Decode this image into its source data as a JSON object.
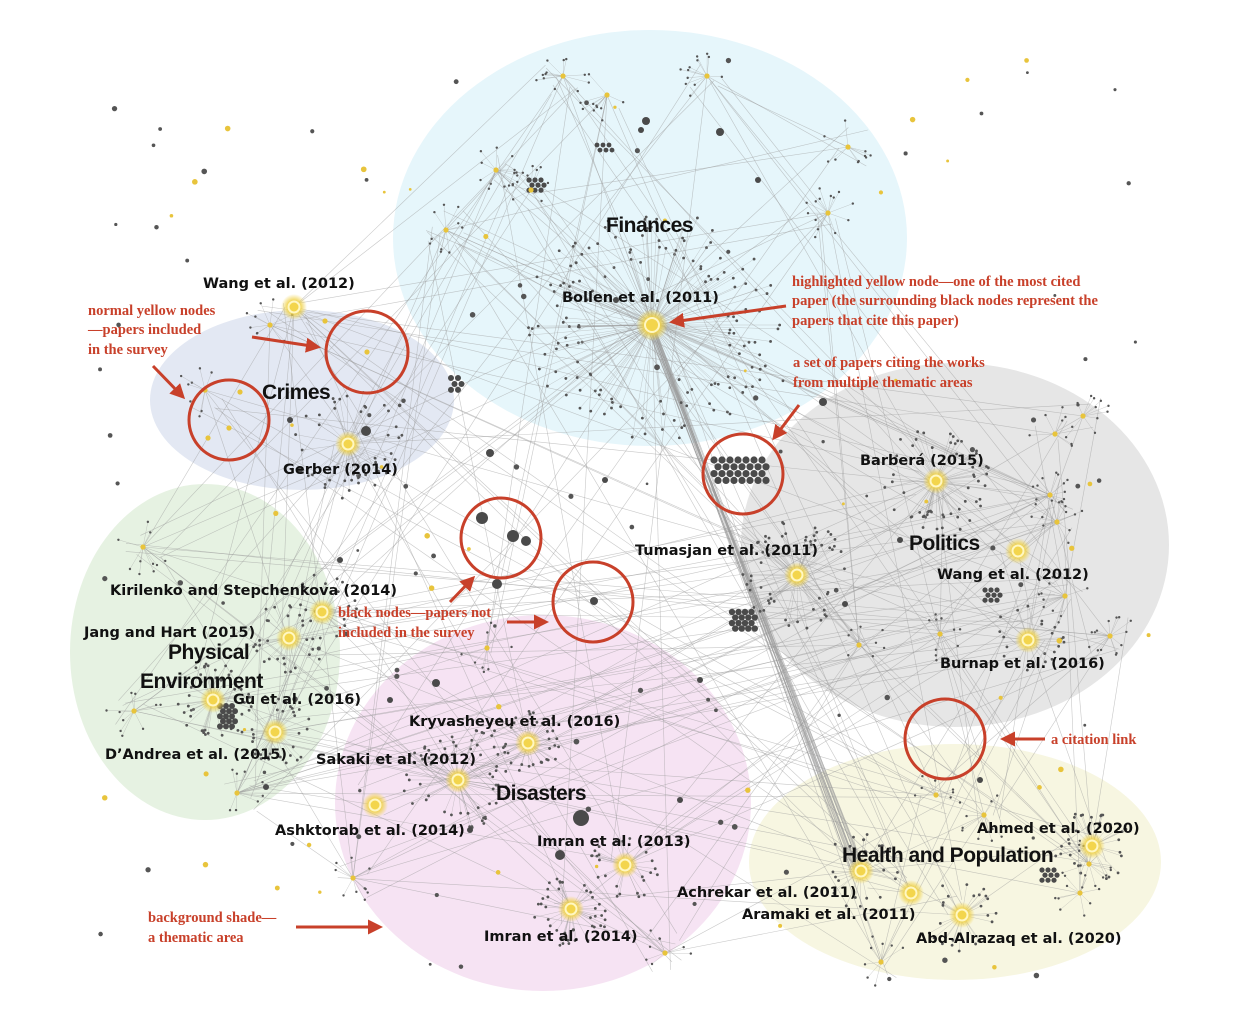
{
  "areas": {
    "finances": "Finances",
    "crimes": "Crimes",
    "politics": "Politics",
    "physical": [
      "Physical",
      "Environment"
    ],
    "disasters": "Disasters",
    "health": "Health and Population"
  },
  "papers": {
    "bollen": "Bollen et al. (2011)",
    "wang_crimes": "Wang et al. (2012)",
    "gerber": "Gerber (2014)",
    "barbera": "Barberá (2015)",
    "tumasjan": "Tumasjan et al. (2011)",
    "wang_politics": "Wang et al. (2012)",
    "burnap": "Burnap et al. (2016)",
    "kirilenko": "Kirilenko and Stepchenkova (2014)",
    "jang": "Jang and Hart (2015)",
    "gu": "Gu et al. (2016)",
    "dandrea": "D’Andrea et al. (2015)",
    "kryvasheyeu": "Kryvasheyeu et al. (2016)",
    "sakaki": "Sakaki et al. (2012)",
    "ashktorab": "Ashktorab et al. (2014)",
    "imran2013": "Imran et al. (2013)",
    "imran2014": "Imran et al. (2014)",
    "ahmed": "Ahmed et al. (2020)",
    "achrekar": "Achrekar et al. (2011)",
    "aramaki": "Aramaki et al. (2011)",
    "abd": "Abd-Alrazaq et al. (2020)"
  },
  "annotations": {
    "highlighted": [
      "highlighted yellow node—one of the most cited",
      "paper (the surrounding black nodes represent the",
      "papers that cite this paper)"
    ],
    "normal": [
      "normal yellow nodes",
      "—papers included",
      "in the survey"
    ],
    "multi": [
      "a set of papers citing the works",
      "from multiple thematic areas"
    ],
    "black": [
      "black nodes—papers not",
      "included in the survey"
    ],
    "link": "a citation link",
    "shade": [
      "background shade—",
      "a thematic area"
    ]
  },
  "colors": {
    "finances_shade": "#e6f6fb",
    "crimes_shade": "#e3e8f3",
    "politics_shade": "#e6e6e6",
    "physical_shade": "#e6f2e2",
    "disasters_shade": "#f6e3f3",
    "health_shade": "#f7f6e1",
    "yellow_node": "#e8c43c",
    "black_node": "#4a4a4a",
    "annotation": "#c8402a",
    "link": "#9a9a9a"
  }
}
